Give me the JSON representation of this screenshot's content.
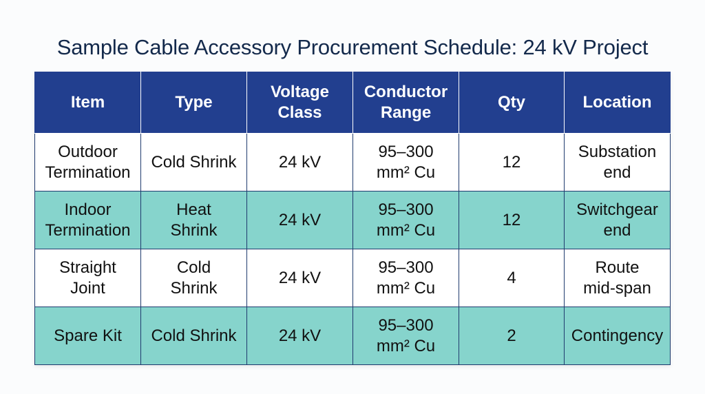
{
  "title": "Sample Cable Accessory Procurement Schedule: 24 kV Project",
  "table": {
    "headers": [
      [
        "Item"
      ],
      [
        "Type"
      ],
      [
        "Voltage",
        "Class"
      ],
      [
        "Conductor",
        "Range"
      ],
      [
        "Qty"
      ],
      [
        "Location"
      ]
    ],
    "rows": [
      {
        "style": "white",
        "item": [
          "Outdoor",
          "Termination"
        ],
        "type": [
          "Cold Shrink"
        ],
        "voltage": [
          "24 kV"
        ],
        "conductor": [
          "95–300",
          "mm² Cu"
        ],
        "qty": [
          "12"
        ],
        "location": [
          "Substation",
          "end"
        ]
      },
      {
        "style": "teal",
        "item": [
          "Indoor",
          "Termination"
        ],
        "type": [
          "Heat",
          "Shrink"
        ],
        "voltage": [
          "24 kV"
        ],
        "conductor": [
          "95–300",
          "mm² Cu"
        ],
        "qty": [
          "12"
        ],
        "location": [
          "Switchgear",
          "end"
        ]
      },
      {
        "style": "white",
        "item": [
          "Straight",
          "Joint"
        ],
        "type": [
          "Cold",
          "Shrink"
        ],
        "voltage": [
          "24 kV"
        ],
        "conductor": [
          "95–300",
          "mm² Cu"
        ],
        "qty": [
          "4"
        ],
        "location": [
          "Route",
          "mid-span"
        ]
      },
      {
        "style": "teal",
        "item": [
          "Spare Kit"
        ],
        "type": [
          "Cold Shrink"
        ],
        "voltage": [
          "24 kV"
        ],
        "conductor": [
          "95–300",
          "mm² Cu"
        ],
        "qty": [
          "2"
        ],
        "location": [
          "Contingency"
        ]
      }
    ]
  },
  "colors": {
    "title": "#13294b",
    "header_bg": "#223f8f",
    "header_text": "#ffffff",
    "row_white": "#ffffff",
    "row_teal": "#86d4cc",
    "border": "#1f3a6e"
  }
}
